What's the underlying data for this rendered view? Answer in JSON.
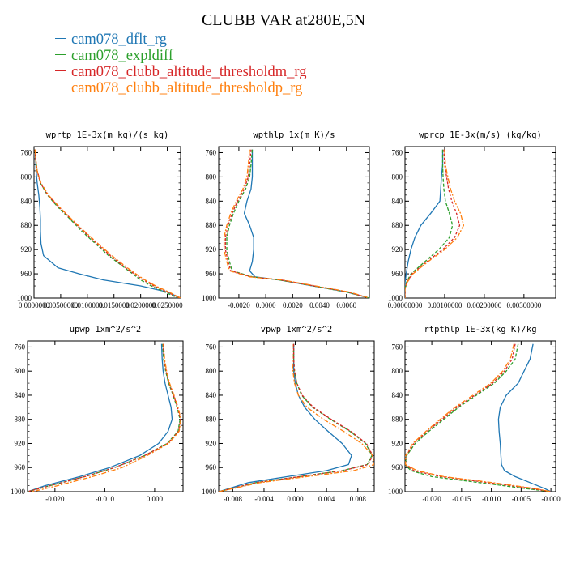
{
  "title": "CLUBB VAR at280E,5N",
  "legend": [
    {
      "label": "cam078_dflt_rg",
      "color": "#1f77b4"
    },
    {
      "label": "cam078_expldiff",
      "color": "#2ca02c"
    },
    {
      "label": "cam078_clubb_altitude_thresholdm_rg",
      "color": "#d62728"
    },
    {
      "label": "cam078_clubb_altitude_thresholdp_rg",
      "color": "#ff7f0e"
    }
  ],
  "chart_data": [
    {
      "type": "line",
      "title": "wprtp 1E-3x(m kg)/(s kg)",
      "xlim": [
        0.0,
        0.0275
      ],
      "ylim": [
        750,
        1000
      ],
      "xticks": [
        0.0,
        0.005,
        0.01,
        0.015,
        0.02,
        0.025
      ],
      "xtick_labels": [
        "0.0000000",
        "0.00500000",
        "0.0100000",
        "0.0150000",
        "0.0200000",
        "0.0250000"
      ],
      "yticks": [
        760,
        800,
        840,
        880,
        920,
        960,
        1000
      ],
      "y": [
        755,
        770,
        790,
        810,
        830,
        850,
        870,
        890,
        910,
        930,
        950,
        960,
        970,
        980,
        990,
        1000
      ],
      "series": [
        {
          "name": "cam078_dflt_rg",
          "color": "#1f77b4",
          "dash": "",
          "values": [
            0.0003,
            0.0003,
            0.0004,
            0.0006,
            0.0009,
            0.0011,
            0.0012,
            0.0012,
            0.0013,
            0.0018,
            0.0045,
            0.0085,
            0.013,
            0.02,
            0.025,
            0.0275
          ]
        },
        {
          "name": "cam078_expldiff",
          "color": "#2ca02c",
          "dash": "4 2",
          "values": [
            0.0002,
            0.0003,
            0.0006,
            0.0012,
            0.0025,
            0.0045,
            0.0068,
            0.009,
            0.0115,
            0.014,
            0.017,
            0.0185,
            0.02,
            0.022,
            0.0245,
            0.027
          ]
        },
        {
          "name": "cam078_clubb_altitude_thresholdm_rg",
          "color": "#d62728",
          "dash": "3 2",
          "values": [
            0.0002,
            0.0003,
            0.0006,
            0.0012,
            0.0026,
            0.0047,
            0.007,
            0.0093,
            0.0118,
            0.0143,
            0.0172,
            0.0188,
            0.0205,
            0.0225,
            0.025,
            0.0273
          ]
        },
        {
          "name": "cam078_clubb_altitude_thresholdp_rg",
          "color": "#ff7f0e",
          "dash": "6 2 2 2",
          "values": [
            0.0002,
            0.0003,
            0.0006,
            0.0013,
            0.0027,
            0.0048,
            0.0071,
            0.0095,
            0.012,
            0.0146,
            0.0175,
            0.0191,
            0.0208,
            0.0228,
            0.0253,
            0.0275
          ]
        }
      ]
    },
    {
      "type": "line",
      "title": "wpthlp 1x(m K)/s",
      "xlim": [
        -0.0035,
        0.0077
      ],
      "ylim": [
        750,
        1000
      ],
      "xticks": [
        -0.002,
        0.0,
        0.002,
        0.004,
        0.006
      ],
      "xtick_labels": [
        "-0.0020",
        "0.0000",
        "0.0020",
        "0.0040",
        "0.0060"
      ],
      "yticks": [
        760,
        800,
        840,
        880,
        920,
        960,
        1000
      ],
      "y": [
        755,
        780,
        800,
        820,
        840,
        860,
        880,
        900,
        920,
        940,
        955,
        965,
        970,
        980,
        990,
        1000
      ],
      "series": [
        {
          "name": "cam078_dflt_rg",
          "color": "#1f77b4",
          "dash": "",
          "values": [
            -0.001,
            -0.001,
            -0.001,
            -0.0011,
            -0.0014,
            -0.0016,
            -0.0012,
            -0.0009,
            -0.0009,
            -0.001,
            -0.0012,
            -0.0008,
            0.001,
            0.0035,
            0.006,
            0.0077
          ]
        },
        {
          "name": "cam078_expldiff",
          "color": "#2ca02c",
          "dash": "4 2",
          "values": [
            -0.001,
            -0.0011,
            -0.0012,
            -0.0015,
            -0.002,
            -0.0024,
            -0.0027,
            -0.0029,
            -0.0029,
            -0.0027,
            -0.0025,
            -0.001,
            0.001,
            0.0035,
            0.006,
            0.0077
          ]
        },
        {
          "name": "cam078_clubb_altitude_thresholdm_rg",
          "color": "#d62728",
          "dash": "3 2",
          "values": [
            -0.0011,
            -0.0012,
            -0.0013,
            -0.0016,
            -0.0021,
            -0.0025,
            -0.0028,
            -0.003,
            -0.003,
            -0.0028,
            -0.0026,
            -0.0011,
            0.0011,
            0.0036,
            0.0061,
            0.0077
          ]
        },
        {
          "name": "cam078_clubb_altitude_thresholdp_rg",
          "color": "#ff7f0e",
          "dash": "6 2 2 2",
          "values": [
            -0.0012,
            -0.0013,
            -0.0014,
            -0.0017,
            -0.0022,
            -0.0026,
            -0.0029,
            -0.0031,
            -0.0031,
            -0.0029,
            -0.0027,
            -0.0012,
            0.0012,
            0.0037,
            0.0062,
            0.0077
          ]
        }
      ]
    },
    {
      "type": "line",
      "title": "wprcp 1E-3x(m/s) (kg/kg)",
      "xlim": [
        0.0,
        0.0038
      ],
      "ylim": [
        750,
        1000
      ],
      "xticks": [
        0.0,
        0.001,
        0.002,
        0.003
      ],
      "xtick_labels": [
        "0.00000000",
        "0.00100000",
        "0.00200000",
        "0.00300000"
      ],
      "yticks": [
        760,
        800,
        840,
        880,
        920,
        960,
        1000
      ],
      "y": [
        755,
        780,
        800,
        820,
        840,
        860,
        880,
        900,
        920,
        940,
        960,
        975,
        985,
        1000
      ],
      "series": [
        {
          "name": "cam078_dflt_rg",
          "color": "#1f77b4",
          "dash": "",
          "values": [
            0.00095,
            0.00095,
            0.00092,
            0.0009,
            0.00088,
            0.00065,
            0.0004,
            0.00025,
            0.00015,
            8e-05,
            3e-05,
            0.0,
            0.0,
            0.0
          ]
        },
        {
          "name": "cam078_expldiff",
          "color": "#2ca02c",
          "dash": "4 2",
          "values": [
            0.00095,
            0.00095,
            0.00096,
            0.00098,
            0.00102,
            0.00112,
            0.0012,
            0.00112,
            0.00085,
            0.0005,
            0.00015,
            3e-05,
            0.0,
            0.0
          ]
        },
        {
          "name": "cam078_clubb_altitude_thresholdm_rg",
          "color": "#d62728",
          "dash": "3 2",
          "values": [
            0.00098,
            0.001,
            0.00105,
            0.0011,
            0.00118,
            0.0013,
            0.00138,
            0.00125,
            0.00095,
            0.00055,
            0.00018,
            4e-05,
            0.0,
            0.0
          ]
        },
        {
          "name": "cam078_clubb_altitude_thresholdp_rg",
          "color": "#ff7f0e",
          "dash": "6 2 2 2",
          "values": [
            0.001,
            0.00102,
            0.00108,
            0.00115,
            0.00125,
            0.0014,
            0.00148,
            0.00132,
            0.001,
            0.00058,
            0.0002,
            5e-05,
            0.0,
            0.0
          ]
        }
      ]
    },
    {
      "type": "line",
      "title": "upwp 1xm^2/s^2",
      "xlim": [
        -0.0255,
        0.0057
      ],
      "ylim": [
        750,
        1000
      ],
      "xticks": [
        -0.02,
        -0.01,
        0.0
      ],
      "xtick_labels": [
        "-0.020",
        "-0.010",
        "0.000"
      ],
      "yticks": [
        760,
        800,
        840,
        880,
        920,
        960,
        1000
      ],
      "y": [
        755,
        780,
        800,
        820,
        840,
        860,
        880,
        900,
        920,
        940,
        960,
        975,
        990,
        1000
      ],
      "series": [
        {
          "name": "cam078_dflt_rg",
          "color": "#1f77b4",
          "dash": "",
          "values": [
            0.0014,
            0.0015,
            0.0017,
            0.0021,
            0.0027,
            0.0033,
            0.0035,
            0.0027,
            0.0008,
            -0.003,
            -0.009,
            -0.015,
            -0.022,
            -0.0255
          ]
        },
        {
          "name": "cam078_expldiff",
          "color": "#2ca02c",
          "dash": "4 2",
          "values": [
            0.0016,
            0.0018,
            0.0022,
            0.0028,
            0.0037,
            0.0045,
            0.0051,
            0.0047,
            0.0025,
            -0.002,
            -0.008,
            -0.014,
            -0.021,
            -0.0255
          ]
        },
        {
          "name": "cam078_clubb_altitude_thresholdm_rg",
          "color": "#d62728",
          "dash": "3 2",
          "values": [
            0.0017,
            0.0019,
            0.0023,
            0.0029,
            0.0038,
            0.0046,
            0.0052,
            0.0048,
            0.0026,
            -0.002,
            -0.008,
            -0.014,
            -0.021,
            -0.0255
          ]
        },
        {
          "name": "cam078_clubb_altitude_thresholdp_rg",
          "color": "#ff7f0e",
          "dash": "6 2 2 2",
          "values": [
            0.0018,
            0.002,
            0.0024,
            0.003,
            0.0039,
            0.0047,
            0.0053,
            0.0049,
            0.0028,
            -0.0015,
            -0.0065,
            -0.0125,
            -0.0195,
            -0.0245
          ]
        }
      ]
    },
    {
      "type": "line",
      "title": "vpwp 1xm^2/s^2",
      "xlim": [
        -0.0098,
        0.0101
      ],
      "ylim": [
        750,
        1000
      ],
      "xticks": [
        -0.008,
        -0.004,
        0.0,
        0.004,
        0.008
      ],
      "xtick_labels": [
        "-0.008",
        "-0.004",
        "0.000",
        "0.004",
        "0.008"
      ],
      "yticks": [
        760,
        800,
        840,
        880,
        920,
        960,
        1000
      ],
      "y": [
        755,
        780,
        800,
        820,
        840,
        860,
        880,
        900,
        920,
        940,
        955,
        965,
        975,
        985,
        1000
      ],
      "series": [
        {
          "name": "cam078_dflt_rg",
          "color": "#1f77b4",
          "dash": "",
          "values": [
            -0.0002,
            -0.0002,
            -0.0002,
            0.0,
            0.0004,
            0.0012,
            0.0025,
            0.0042,
            0.006,
            0.0072,
            0.0068,
            0.004,
            -0.001,
            -0.006,
            -0.0098
          ]
        },
        {
          "name": "cam078_expldiff",
          "color": "#2ca02c",
          "dash": "4 2",
          "values": [
            -0.0002,
            -0.0002,
            -0.0001,
            0.0002,
            0.0008,
            0.0022,
            0.0045,
            0.007,
            0.009,
            0.0098,
            0.0092,
            0.006,
            0.0005,
            -0.005,
            -0.0098
          ]
        },
        {
          "name": "cam078_clubb_altitude_thresholdm_rg",
          "color": "#d62728",
          "dash": "3 2",
          "values": [
            -0.0002,
            -0.0002,
            -0.0001,
            0.0002,
            0.0009,
            0.0023,
            0.0046,
            0.0071,
            0.0091,
            0.0099,
            0.0093,
            0.0061,
            0.0006,
            -0.005,
            -0.0098
          ]
        },
        {
          "name": "cam078_clubb_altitude_thresholdp_rg",
          "color": "#ff7f0e",
          "dash": "6 2 2 2",
          "values": [
            -0.0004,
            -0.0004,
            -0.0003,
            -0.0001,
            0.0004,
            0.0015,
            0.0036,
            0.0062,
            0.0085,
            0.0099,
            0.0101,
            0.0075,
            0.0015,
            -0.0045,
            -0.0098
          ]
        }
      ]
    },
    {
      "type": "line",
      "title": "rtpthlp 1E-3x(kg K)/kg",
      "xlim": [
        -0.0245,
        0.0008
      ],
      "ylim": [
        750,
        1000
      ],
      "xticks": [
        -0.02,
        -0.015,
        -0.01,
        -0.005,
        0.0
      ],
      "xtick_labels": [
        "-0.020",
        "-0.015",
        "-0.010",
        "-0.005",
        "-0.000"
      ],
      "yticks": [
        760,
        800,
        840,
        880,
        920,
        960,
        1000
      ],
      "y": [
        755,
        780,
        800,
        820,
        840,
        860,
        880,
        900,
        920,
        940,
        955,
        965,
        975,
        985,
        995,
        1000
      ],
      "series": [
        {
          "name": "cam078_dflt_rg",
          "color": "#1f77b4",
          "dash": "",
          "values": [
            -0.003,
            -0.0035,
            -0.0045,
            -0.0055,
            -0.0075,
            -0.0085,
            -0.0088,
            -0.0087,
            -0.0085,
            -0.0084,
            -0.0083,
            -0.0078,
            -0.006,
            -0.0035,
            -0.001,
            0.0
          ]
        },
        {
          "name": "cam078_expldiff",
          "color": "#2ca02c",
          "dash": "4 2",
          "values": [
            -0.0055,
            -0.006,
            -0.0075,
            -0.0095,
            -0.0125,
            -0.0155,
            -0.018,
            -0.0205,
            -0.0228,
            -0.0242,
            -0.0245,
            -0.0235,
            -0.02,
            -0.012,
            -0.004,
            0.0
          ]
        },
        {
          "name": "cam078_clubb_altitude_thresholdm_rg",
          "color": "#d62728",
          "dash": "3 2",
          "values": [
            -0.006,
            -0.0065,
            -0.0078,
            -0.0098,
            -0.0128,
            -0.0158,
            -0.0183,
            -0.0208,
            -0.023,
            -0.0243,
            -0.0245,
            -0.023,
            -0.0185,
            -0.0105,
            -0.003,
            0.0
          ]
        },
        {
          "name": "cam078_clubb_altitude_thresholdp_rg",
          "color": "#ff7f0e",
          "dash": "6 2 2 2",
          "values": [
            -0.0062,
            -0.0068,
            -0.0081,
            -0.0101,
            -0.0131,
            -0.0161,
            -0.0186,
            -0.021,
            -0.0232,
            -0.0244,
            -0.0244,
            -0.0225,
            -0.018,
            -0.0098,
            -0.0025,
            0.0
          ]
        }
      ]
    }
  ]
}
